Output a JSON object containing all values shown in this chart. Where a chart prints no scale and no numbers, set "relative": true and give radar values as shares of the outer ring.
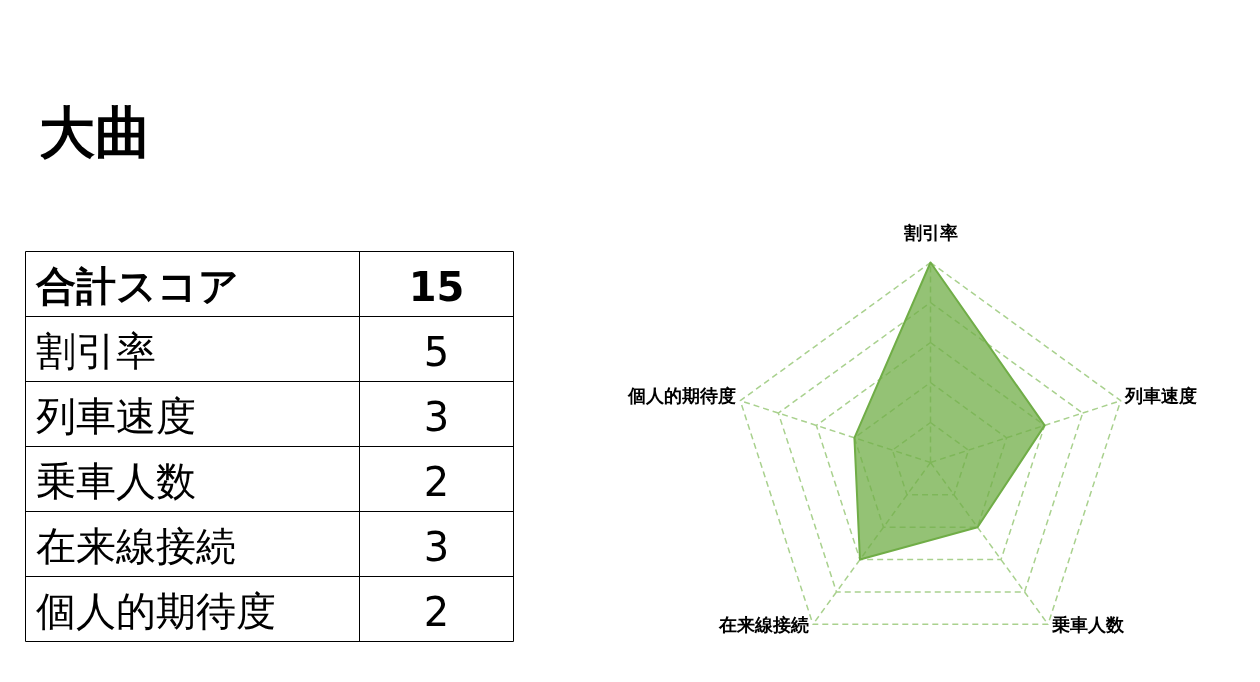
{
  "chart_data": [
    {
      "type": "other",
      "title": "大曲",
      "annotations": [
        "合計スコア",
        "15",
        "割引率",
        "5",
        "列車速度",
        "3",
        "乗車人数",
        "2",
        "在来線接続",
        "3",
        "個人的期待度",
        "2"
      ]
    },
    {
      "type": "radar",
      "categories": [
        "割引率",
        "列車速度",
        "乗車人数",
        "在来線接続",
        "個人的期待度"
      ],
      "series": [
        {
          "color": "#70ad47",
          "values": [
            1,
            0.6,
            0.4,
            0.6,
            0.4
          ]
        }
      ],
      "relative": true,
      "grid": true
    }
  ]
}
